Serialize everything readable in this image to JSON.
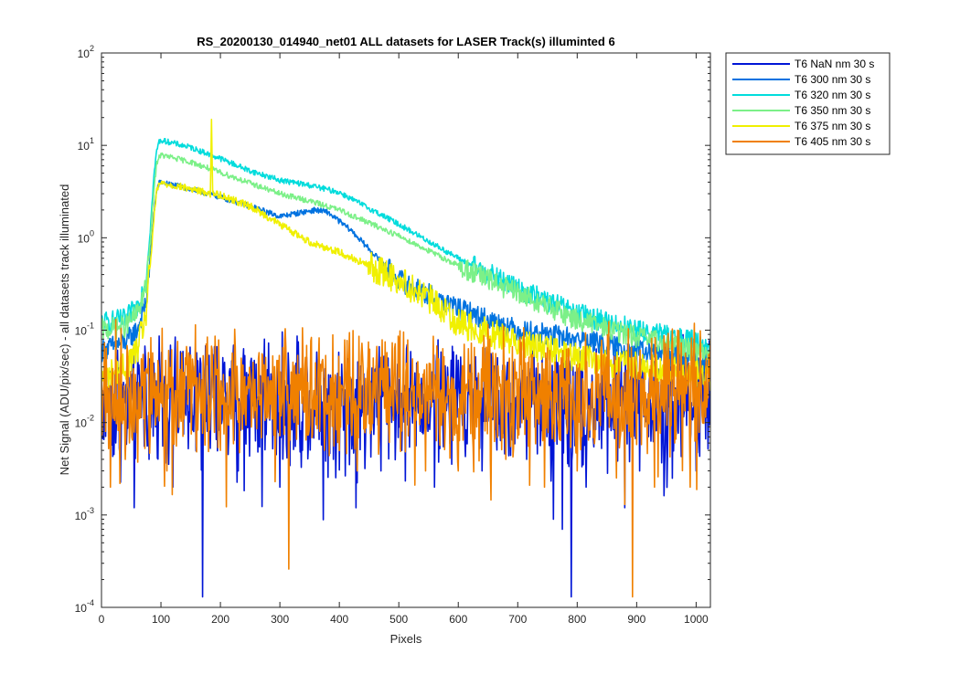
{
  "chart_data": {
    "type": "line",
    "title": "RS_20200130_014940_net01 ALL datasets for LASER  Track(s) illuminted 6",
    "xlabel": "Pixels",
    "ylabel": "Net Signal (ADU/pix/sec) - all datasets track illuminated",
    "xlim": [
      0,
      1024
    ],
    "ylim": [
      0.0001,
      100
    ],
    "yscale": "log",
    "xticks": [
      0,
      100,
      200,
      300,
      400,
      500,
      600,
      700,
      800,
      900,
      1000
    ],
    "xtick_labels": [
      "0",
      "100",
      "200",
      "300",
      "400",
      "500",
      "600",
      "700",
      "800",
      "900",
      "1000"
    ],
    "yticks": [
      0.0001,
      0.001,
      0.01,
      0.1,
      1,
      10,
      100
    ],
    "ytick_labels": [
      {
        "base": "10",
        "exp": "-4"
      },
      {
        "base": "10",
        "exp": "-3"
      },
      {
        "base": "10",
        "exp": "-2"
      },
      {
        "base": "10",
        "exp": "-1"
      },
      {
        "base": "10",
        "exp": "0"
      },
      {
        "base": "10",
        "exp": "1"
      },
      {
        "base": "10",
        "exp": "2"
      }
    ],
    "grid": false,
    "legend_position": "outside-top-right",
    "series": [
      {
        "name": "T6 NaN nm 30 s",
        "color": "#0015d6",
        "style": "noise",
        "x": [
          0,
          1024
        ],
        "y": [
          0.04,
          0.04
        ],
        "noise_level": 0.018,
        "noise_spread": 0.45,
        "dips": [
          [
            55,
            0.0012
          ],
          [
            80,
            0.004
          ],
          [
            120,
            0.002
          ],
          [
            170,
            0.00013
          ],
          [
            230,
            0.003
          ],
          [
            300,
            0.002
          ],
          [
            390,
            0.004
          ],
          [
            470,
            0.003
          ],
          [
            560,
            0.002
          ],
          [
            640,
            0.003
          ],
          [
            715,
            0.004
          ],
          [
            760,
            0.0009
          ],
          [
            775,
            0.0007
          ],
          [
            790,
            0.00013
          ],
          [
            815,
            0.002
          ],
          [
            880,
            0.0012
          ],
          [
            905,
            0.003
          ],
          [
            960,
            0.0025
          ],
          [
            1000,
            0.003
          ]
        ]
      },
      {
        "name": "T6 300 nm 30 s",
        "color": "#0072e0",
        "style": "smooth",
        "x": [
          0,
          40,
          60,
          75,
          82,
          88,
          93,
          97,
          100,
          130,
          180,
          250,
          300,
          330,
          360,
          380,
          420,
          500,
          600,
          700,
          800,
          900,
          1000,
          1024
        ],
        "y": [
          0.06,
          0.075,
          0.1,
          0.2,
          0.6,
          1.8,
          3.3,
          3.9,
          4.0,
          3.6,
          3.0,
          2.2,
          1.7,
          1.85,
          2.0,
          1.9,
          1.2,
          0.35,
          0.17,
          0.1,
          0.08,
          0.06,
          0.05,
          0.045
        ],
        "noise_spread": 0.03
      },
      {
        "name": "T6 320 nm 30 s",
        "color": "#00dcdc",
        "style": "smooth",
        "x": [
          0,
          40,
          60,
          75,
          82,
          88,
          93,
          97,
          100,
          110,
          150,
          200,
          250,
          300,
          350,
          400,
          500,
          600,
          700,
          800,
          900,
          1000,
          1024
        ],
        "y": [
          0.12,
          0.13,
          0.18,
          0.35,
          1.2,
          4.5,
          9.0,
          11.0,
          11.3,
          11.0,
          9.5,
          7.2,
          5.3,
          4.2,
          3.7,
          3.1,
          1.4,
          0.6,
          0.28,
          0.15,
          0.1,
          0.075,
          0.065
        ],
        "noise_spread": 0.03
      },
      {
        "name": "T6 350 nm 30 s",
        "color": "#7cf088",
        "style": "smooth",
        "x": [
          0,
          40,
          60,
          75,
          82,
          88,
          93,
          97,
          100,
          110,
          150,
          200,
          250,
          300,
          350,
          400,
          500,
          600,
          700,
          800,
          900,
          1000,
          1024
        ],
        "y": [
          0.1,
          0.11,
          0.15,
          0.3,
          0.9,
          3.2,
          6.5,
          7.6,
          7.8,
          7.6,
          6.6,
          5.1,
          3.9,
          3.0,
          2.5,
          2.0,
          1.05,
          0.5,
          0.25,
          0.13,
          0.085,
          0.06,
          0.055
        ],
        "noise_spread": 0.03
      },
      {
        "name": "T6 375 nm 30 s",
        "color": "#f0f000",
        "style": "smooth",
        "x": [
          0,
          40,
          60,
          75,
          82,
          88,
          93,
          97,
          100,
          130,
          170,
          183,
          185,
          187,
          189,
          191,
          200,
          250,
          300,
          350,
          400,
          500,
          560,
          600,
          700,
          800,
          900,
          1000,
          1024
        ],
        "y": [
          0.03,
          0.04,
          0.06,
          0.15,
          0.5,
          1.6,
          3.2,
          3.8,
          3.9,
          3.6,
          3.15,
          3.0,
          17.5,
          3.2,
          2.95,
          3.0,
          2.9,
          2.2,
          1.4,
          0.9,
          0.7,
          0.35,
          0.2,
          0.12,
          0.075,
          0.05,
          0.04,
          0.035,
          0.03
        ],
        "noise_spread": 0.04
      },
      {
        "name": "T6 405 nm 30 s",
        "color": "#f08000",
        "style": "noise",
        "x": [
          0,
          1024
        ],
        "y": [
          0.045,
          0.045
        ],
        "noise_level": 0.022,
        "noise_spread": 0.5,
        "dips": [
          [
            15,
            0.002
          ],
          [
            40,
            0.004
          ],
          [
            110,
            0.003
          ],
          [
            200,
            0.005
          ],
          [
            315,
            0.00026
          ],
          [
            430,
            0.003
          ],
          [
            545,
            0.003
          ],
          [
            600,
            0.003
          ],
          [
            680,
            0.004
          ],
          [
            745,
            0.002
          ],
          [
            800,
            0.003
          ],
          [
            880,
            0.0013
          ],
          [
            893,
            0.00013
          ],
          [
            930,
            0.002
          ],
          [
            990,
            0.002
          ]
        ]
      }
    ]
  }
}
